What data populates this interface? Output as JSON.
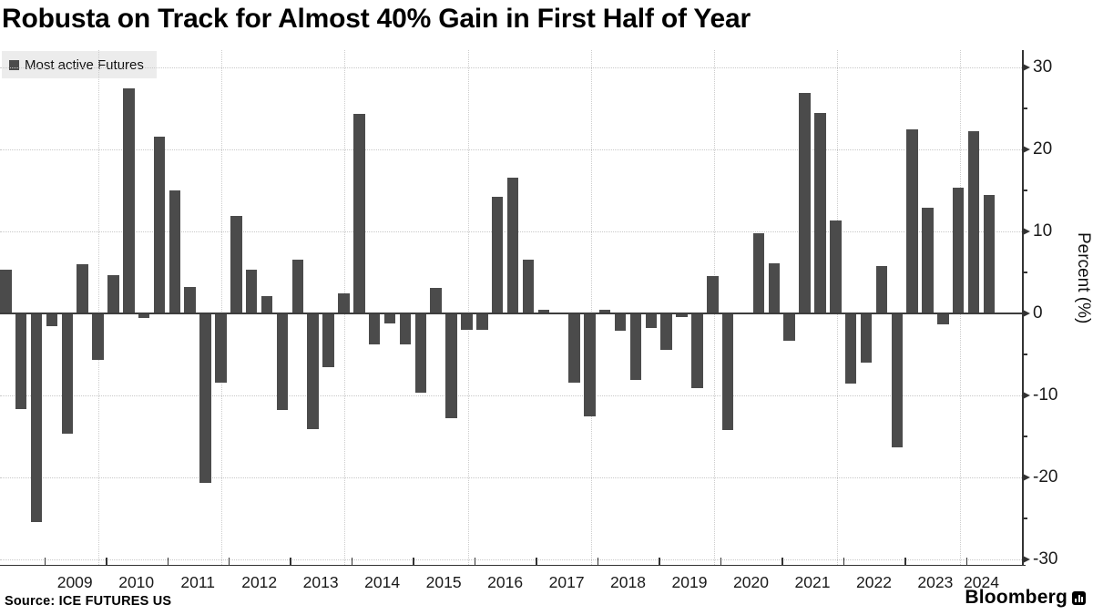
{
  "title": "Robusta on Track for Almost 40% Gain in First Half of Year",
  "legend": {
    "label": "Most active Futures"
  },
  "y_axis": {
    "label": "Percent (%)",
    "major_ticks": [
      30,
      20,
      10,
      0,
      -10,
      -20,
      -30
    ],
    "minor_ticks": [
      25,
      15,
      5,
      -5,
      -15,
      -25
    ]
  },
  "x_axis": {
    "year_labels": [
      "2009",
      "2010",
      "2011",
      "2012",
      "2013",
      "2014",
      "2015",
      "2016",
      "2017",
      "2018",
      "2019",
      "2020",
      "2021",
      "2022",
      "2023",
      "2024"
    ]
  },
  "footer": {
    "source": "Source: ICE FUTURES US",
    "brand": "Bloomberg"
  },
  "colors": {
    "bar": "#4b4b4b",
    "grid": "#c9c9c9",
    "axis": "#333333",
    "legend_bg": "#ececec",
    "background": "#ffffff"
  },
  "chart_data": {
    "type": "bar",
    "title": "Robusta on Track for Almost 40% Gain in First Half of Year",
    "legend": [
      "Most active Futures"
    ],
    "xlabel": "",
    "ylabel": "Percent (%)",
    "ylim": [
      -30.5,
      32
    ],
    "grid": true,
    "legend_position": "top-left",
    "axis_side": "right",
    "x": [
      "2008 Q2",
      "2008 Q3",
      "2008 Q4",
      "2009 Q1",
      "2009 Q2",
      "2009 Q3",
      "2009 Q4",
      "2010 Q1",
      "2010 Q2",
      "2010 Q3",
      "2010 Q4",
      "2011 Q1",
      "2011 Q2",
      "2011 Q3",
      "2011 Q4",
      "2012 Q1",
      "2012 Q2",
      "2012 Q3",
      "2012 Q4",
      "2013 Q1",
      "2013 Q2",
      "2013 Q3",
      "2013 Q4",
      "2014 Q1",
      "2014 Q2",
      "2014 Q3",
      "2014 Q4",
      "2015 Q1",
      "2015 Q2",
      "2015 Q3",
      "2015 Q4",
      "2016 Q1",
      "2016 Q2",
      "2016 Q3",
      "2016 Q4",
      "2017 Q1",
      "2017 Q2",
      "2017 Q3",
      "2017 Q4",
      "2018 Q1",
      "2018 Q2",
      "2018 Q3",
      "2018 Q4",
      "2019 Q1",
      "2019 Q2",
      "2019 Q3",
      "2019 Q4",
      "2020 Q1",
      "2020 Q2",
      "2020 Q3",
      "2020 Q4",
      "2021 Q1",
      "2021 Q2",
      "2021 Q3",
      "2021 Q4",
      "2022 Q1",
      "2022 Q2",
      "2022 Q3",
      "2022 Q4",
      "2023 Q1",
      "2023 Q2",
      "2023 Q3",
      "2023 Q4",
      "2024 Q1",
      "2024 Q2"
    ],
    "values": [
      5.3,
      -11.7,
      -25.4,
      -1.6,
      -14.7,
      6.0,
      -5.7,
      4.7,
      27.4,
      -0.5,
      21.6,
      15.0,
      3.2,
      -20.7,
      -8.4,
      11.9,
      5.3,
      2.1,
      -11.8,
      6.6,
      -14.1,
      -6.6,
      2.4,
      24.3,
      -3.8,
      -1.2,
      -3.8,
      -9.7,
      3.1,
      -12.8,
      -2.0,
      -2.0,
      14.2,
      16.6,
      6.6,
      0.4,
      0.1,
      -8.4,
      -12.6,
      0.5,
      -2.1,
      -8.1,
      -1.8,
      -4.4,
      -0.4,
      -9.1,
      4.6,
      -14.2,
      -0.1,
      9.8,
      6.1,
      -3.3,
      26.9,
      24.4,
      11.3,
      -8.5,
      -6.0,
      5.8,
      -16.3,
      22.4,
      12.9,
      -1.3,
      15.3,
      22.2,
      14.5
    ]
  }
}
